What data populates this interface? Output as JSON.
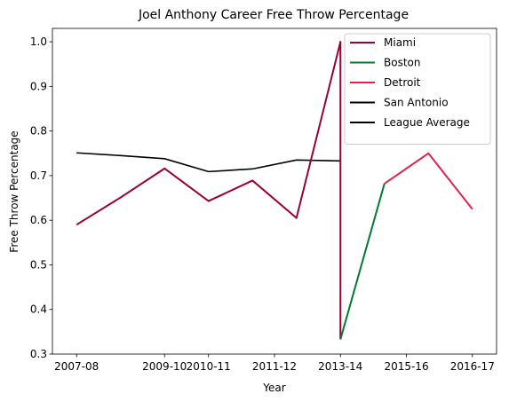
{
  "chart_data": {
    "type": "line",
    "title": "Joel Anthony Career Free Throw Percentage",
    "xlabel": "Year",
    "ylabel": "Free Throw Percentage",
    "x_tick_labels": [
      "2007-08",
      "2009-10",
      "2010-11",
      "2011-12",
      "2013-14",
      "2015-16",
      "2016-17"
    ],
    "x_tick_positions": [
      0,
      2,
      3,
      4.5,
      6,
      7.5,
      9
    ],
    "xlim": [
      -0.55,
      9.55
    ],
    "ylim": [
      0.3,
      1.03
    ],
    "y_ticks": [
      "0.3",
      "0.4",
      "0.5",
      "0.6",
      "0.7",
      "0.8",
      "0.9",
      "1.0"
    ],
    "legend_position": "top-right",
    "grid": false,
    "series": [
      {
        "name": "Miami",
        "color": "#990033",
        "points": [
          [
            0,
            0.59
          ],
          [
            1,
            0.651
          ],
          [
            2,
            0.716
          ],
          [
            3,
            0.643
          ],
          [
            4,
            0.689
          ],
          [
            5,
            0.605
          ],
          [
            6,
            1.0
          ],
          [
            6,
            0.333
          ]
        ]
      },
      {
        "name": "Boston",
        "color": "#007A33",
        "points": [
          [
            6,
            0.333
          ],
          [
            7,
            0.682
          ]
        ]
      },
      {
        "name": "Detroit",
        "color": "#E31F4C",
        "points": [
          [
            7,
            0.682
          ],
          [
            8,
            0.75
          ],
          [
            9,
            0.625
          ]
        ]
      },
      {
        "name": "San Antonio",
        "color": "#000000",
        "points": []
      },
      {
        "name": "League Average",
        "color": "#000000",
        "points": [
          [
            0,
            0.751
          ],
          [
            1,
            0.745
          ],
          [
            2,
            0.738
          ],
          [
            3,
            0.709
          ],
          [
            4,
            0.715
          ],
          [
            5,
            0.735
          ],
          [
            6,
            0.733
          ]
        ]
      }
    ]
  }
}
